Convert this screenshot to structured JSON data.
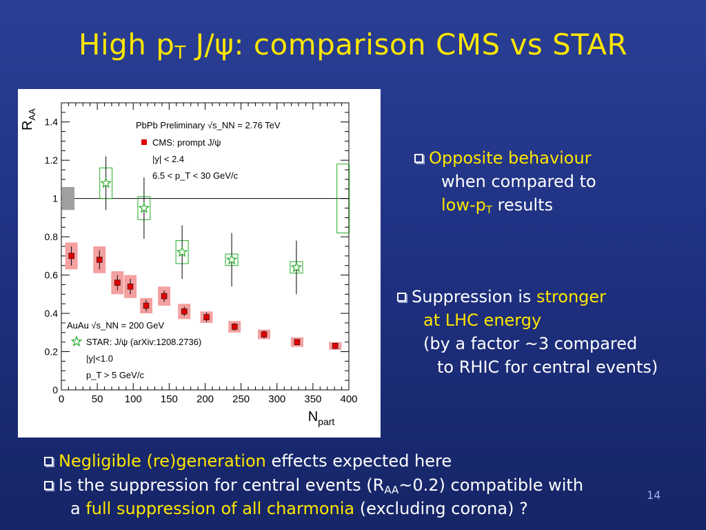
{
  "slide": {
    "title_part1": "High p",
    "title_sub": "T",
    "title_part2": " J/ψ: comparison CMS vs STAR",
    "page_number": "14"
  },
  "bullets_right": {
    "b1_line1": "Opposite behaviour",
    "b1_line2": "when compared to",
    "b1_line3_prefix": "low-p",
    "b1_line3_sub": "T",
    "b1_line3_suffix": " results",
    "b2_line1_plain": "Suppression is ",
    "b2_line1_hl": "stronger",
    "b2_line2": "at LHC energy",
    "b2_line3": "(by a factor ~3 compared",
    "b2_line4": "to RHIC for central events)"
  },
  "bullets_bottom": {
    "b3_hl": "Negligible (re)generation",
    "b3_plain": " effects expected here",
    "b4_part1": "Is the suppression for central events (R",
    "b4_sub": "AA",
    "b4_part2": "~0.2) compatible with",
    "b4_line2_prefix": "a ",
    "b4_line2_hl": "full suppression of all charmonia",
    "b4_line2_suffix": " (excluding corona) ?"
  },
  "colors": {
    "background": "#22378a",
    "title": "#ffe600",
    "highlight": "#ffe600",
    "cms_marker": "#dd0000",
    "cms_syst": "#f4a0a0",
    "star_marker": "#22aa22",
    "global_box": "#a0a0a0"
  },
  "chart_data": {
    "type": "scatter",
    "xlabel": "N_part",
    "ylabel": "R_AA",
    "xlim": [
      0,
      400
    ],
    "ylim": [
      0,
      1.5
    ],
    "x_ticks": [
      0,
      50,
      100,
      150,
      200,
      250,
      300,
      350,
      400
    ],
    "y_ticks": [
      0,
      0.2,
      0.4,
      0.6,
      0.8,
      1,
      1.2,
      1.4
    ],
    "reference_line": 1,
    "global_uncertainty": [
      0.94,
      1.06
    ],
    "legend_cms": {
      "line1": "PbPb Preliminary √s_NN = 2.76 TeV",
      "line2": "CMS: prompt J/ψ",
      "line3": "|y| < 2.4",
      "line4": "6.5 < p_T < 30 GeV/c"
    },
    "legend_star": {
      "line1": "AuAu √s_NN = 200 GeV",
      "line2": "STAR: J/ψ (arXiv:1208.2736)",
      "line3": "|y|<1.0",
      "line4": "p_T > 5 GeV/c"
    },
    "series": [
      {
        "name": "CMS: prompt J/ψ",
        "marker": "square",
        "x": [
          14,
          53,
          78,
          96,
          118,
          143,
          171,
          202,
          241,
          282,
          328,
          381
        ],
        "y": [
          0.7,
          0.68,
          0.56,
          0.54,
          0.44,
          0.49,
          0.41,
          0.38,
          0.33,
          0.29,
          0.25,
          0.23
        ],
        "stat_err": [
          0.05,
          0.05,
          0.04,
          0.04,
          0.03,
          0.03,
          0.025,
          0.025,
          0.02,
          0.02,
          0.015,
          0.015
        ],
        "syst_err": [
          0.07,
          0.07,
          0.06,
          0.06,
          0.04,
          0.05,
          0.04,
          0.03,
          0.03,
          0.025,
          0.025,
          0.02
        ],
        "syst_half_width": [
          9,
          9,
          9,
          9,
          9,
          9,
          9,
          9,
          9,
          9,
          9,
          9
        ]
      },
      {
        "name": "STAR: J/ψ (arXiv:1208.2736)",
        "marker": "star",
        "x": [
          62,
          115,
          168,
          237,
          327
        ],
        "y": [
          1.08,
          0.95,
          0.72,
          0.68,
          0.64
        ],
        "stat_err": [
          0.14,
          0.16,
          0.14,
          0.14,
          0.14
        ],
        "syst_err": [
          0.08,
          0.06,
          0.06,
          0.03,
          0.03
        ],
        "syst_half_width": [
          9,
          9,
          9,
          9,
          9
        ]
      }
    ],
    "extra_syst_box": {
      "x": 392,
      "y_low": 0.82,
      "y_high": 1.18,
      "half_width": 9
    }
  }
}
